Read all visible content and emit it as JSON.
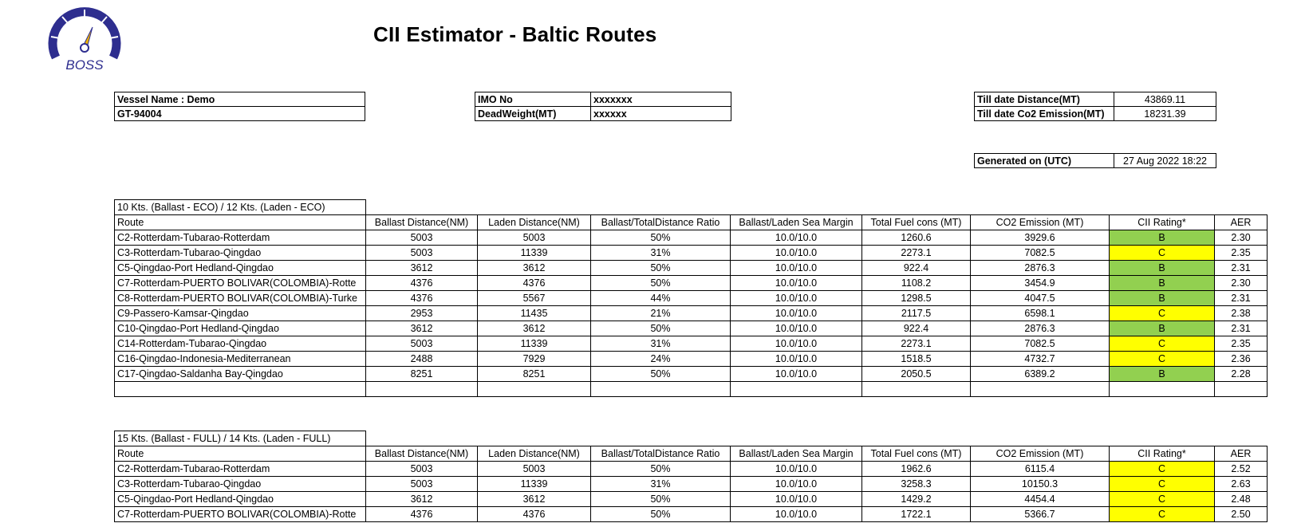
{
  "header": {
    "title": "CII Estimator - Baltic Routes",
    "logo_text": "BOSS",
    "logo_colors": {
      "ring": "#2e2e8f",
      "needle": "#f0b400",
      "text": "#2e2e8f"
    }
  },
  "vessel": {
    "name": "Vessel Name : Demo",
    "gt": "GT-94004",
    "imo_label": "IMO No",
    "imo_value": "xxxxxxx",
    "dwt_label": "DeadWeight(MT)",
    "dwt_value": "xxxxxx",
    "distance_label": "Till date Distance(MT)",
    "distance_value": "43869.11",
    "co2_label": "Till date Co2 Emission(MT)",
    "co2_value": "18231.39",
    "generated_label": "Generated on (UTC)",
    "generated_value": "27 Aug 2022 18:22"
  },
  "columns": [
    "Route",
    "Ballast Distance(NM)",
    "Laden Distance(NM)",
    "Ballast/TotalDistance Ratio",
    "Ballast/Laden Sea Margin",
    "Total Fuel cons (MT)",
    "CO2 Emission (MT)",
    "CII Rating*",
    "AER"
  ],
  "rating_colors": {
    "B": "#92d050",
    "C": "#ffff00"
  },
  "sections": [
    {
      "caption": "10 Kts. (Ballast -  ECO) / 12 Kts. (Laden - ECO)",
      "rows": [
        {
          "route": "C2-Rotterdam-Tubarao-Rotterdam",
          "ballast": "5003",
          "laden": "5003",
          "ratio": "50%",
          "margin": "10.0/10.0",
          "fuel": "1260.6",
          "co2": "3929.6",
          "rating": "B",
          "aer": "2.30"
        },
        {
          "route": "C3-Rotterdam-Tubarao-Qingdao",
          "ballast": "5003",
          "laden": "11339",
          "ratio": "31%",
          "margin": "10.0/10.0",
          "fuel": "2273.1",
          "co2": "7082.5",
          "rating": "C",
          "aer": "2.35"
        },
        {
          "route": "C5-Qingdao-Port Hedland-Qingdao",
          "ballast": "3612",
          "laden": "3612",
          "ratio": "50%",
          "margin": "10.0/10.0",
          "fuel": "922.4",
          "co2": "2876.3",
          "rating": "B",
          "aer": "2.31"
        },
        {
          "route": "C7-Rotterdam-PUERTO BOLIVAR(COLOMBIA)-Rotte",
          "ballast": "4376",
          "laden": "4376",
          "ratio": "50%",
          "margin": "10.0/10.0",
          "fuel": "1108.2",
          "co2": "3454.9",
          "rating": "B",
          "aer": "2.30"
        },
        {
          "route": "C8-Rotterdam-PUERTO BOLIVAR(COLOMBIA)-Turke",
          "ballast": "4376",
          "laden": "5567",
          "ratio": "44%",
          "margin": "10.0/10.0",
          "fuel": "1298.5",
          "co2": "4047.5",
          "rating": "B",
          "aer": "2.31"
        },
        {
          "route": "C9-Passero-Kamsar-Qingdao",
          "ballast": "2953",
          "laden": "11435",
          "ratio": "21%",
          "margin": "10.0/10.0",
          "fuel": "2117.5",
          "co2": "6598.1",
          "rating": "C",
          "aer": "2.38"
        },
        {
          "route": "C10-Qingdao-Port Hedland-Qingdao",
          "ballast": "3612",
          "laden": "3612",
          "ratio": "50%",
          "margin": "10.0/10.0",
          "fuel": "922.4",
          "co2": "2876.3",
          "rating": "B",
          "aer": "2.31"
        },
        {
          "route": "C14-Rotterdam-Tubarao-Qingdao",
          "ballast": "5003",
          "laden": "11339",
          "ratio": "31%",
          "margin": "10.0/10.0",
          "fuel": "2273.1",
          "co2": "7082.5",
          "rating": "C",
          "aer": "2.35"
        },
        {
          "route": "C16-Qingdao-Indonesia-Mediterranean",
          "ballast": "2488",
          "laden": "7929",
          "ratio": "24%",
          "margin": "10.0/10.0",
          "fuel": "1518.5",
          "co2": "4732.7",
          "rating": "C",
          "aer": "2.36"
        },
        {
          "route": "C17-Qingdao-Saldanha Bay-Qingdao",
          "ballast": "8251",
          "laden": "8251",
          "ratio": "50%",
          "margin": "10.0/10.0",
          "fuel": "2050.5",
          "co2": "6389.2",
          "rating": "B",
          "aer": "2.28"
        }
      ]
    },
    {
      "caption": "15 Kts. (Ballast -  FULL) / 14 Kts. (Laden - FULL)",
      "rows": [
        {
          "route": "C2-Rotterdam-Tubarao-Rotterdam",
          "ballast": "5003",
          "laden": "5003",
          "ratio": "50%",
          "margin": "10.0/10.0",
          "fuel": "1962.6",
          "co2": "6115.4",
          "rating": "C",
          "aer": "2.52"
        },
        {
          "route": "C3-Rotterdam-Tubarao-Qingdao",
          "ballast": "5003",
          "laden": "11339",
          "ratio": "31%",
          "margin": "10.0/10.0",
          "fuel": "3258.3",
          "co2": "10150.3",
          "rating": "C",
          "aer": "2.63"
        },
        {
          "route": "C5-Qingdao-Port Hedland-Qingdao",
          "ballast": "3612",
          "laden": "3612",
          "ratio": "50%",
          "margin": "10.0/10.0",
          "fuel": "1429.2",
          "co2": "4454.4",
          "rating": "C",
          "aer": "2.48"
        },
        {
          "route": "C7-Rotterdam-PUERTO BOLIVAR(COLOMBIA)-Rotte",
          "ballast": "4376",
          "laden": "4376",
          "ratio": "50%",
          "margin": "10.0/10.0",
          "fuel": "1722.1",
          "co2": "5366.7",
          "rating": "C",
          "aer": "2.50"
        }
      ]
    }
  ]
}
